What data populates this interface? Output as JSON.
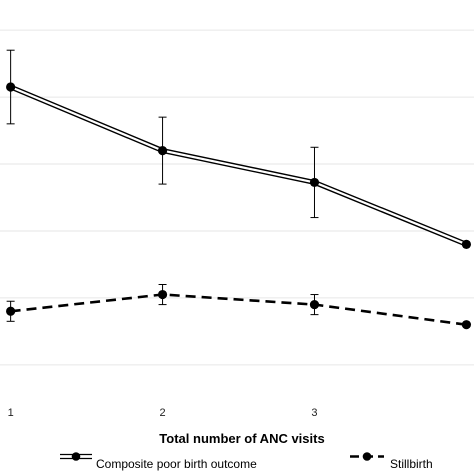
{
  "chart_data": {
    "type": "line",
    "title": "",
    "xlabel": "Total number of ANC visits",
    "ylabel": "",
    "x": [
      1,
      2,
      3,
      4
    ],
    "x_tick_labels": [
      "1",
      "2",
      "3"
    ],
    "xlim": [
      0.93,
      4.05
    ],
    "ylim": [
      -0.12,
      1.09
    ],
    "y_gridlines": [
      0,
      0.2,
      0.4,
      0.6,
      0.8,
      1.0
    ],
    "grid": true,
    "legend_position": "bottom",
    "series": [
      {
        "name": "Composite poor birth outcome",
        "line_style": "double-solid",
        "color": "#000000",
        "x": [
          1,
          2,
          3,
          4
        ],
        "values": [
          0.83,
          0.64,
          0.545,
          0.36
        ],
        "lower": [
          0.72,
          0.54,
          0.44,
          null
        ],
        "upper": [
          0.94,
          0.74,
          0.65,
          null
        ]
      },
      {
        "name": "Stillbirth",
        "line_style": "dashed",
        "color": "#000000",
        "x": [
          1,
          2,
          3,
          4
        ],
        "values": [
          0.16,
          0.21,
          0.18,
          0.12
        ],
        "lower": [
          0.13,
          0.18,
          0.15,
          null
        ],
        "upper": [
          0.19,
          0.24,
          0.21,
          null
        ]
      }
    ]
  }
}
